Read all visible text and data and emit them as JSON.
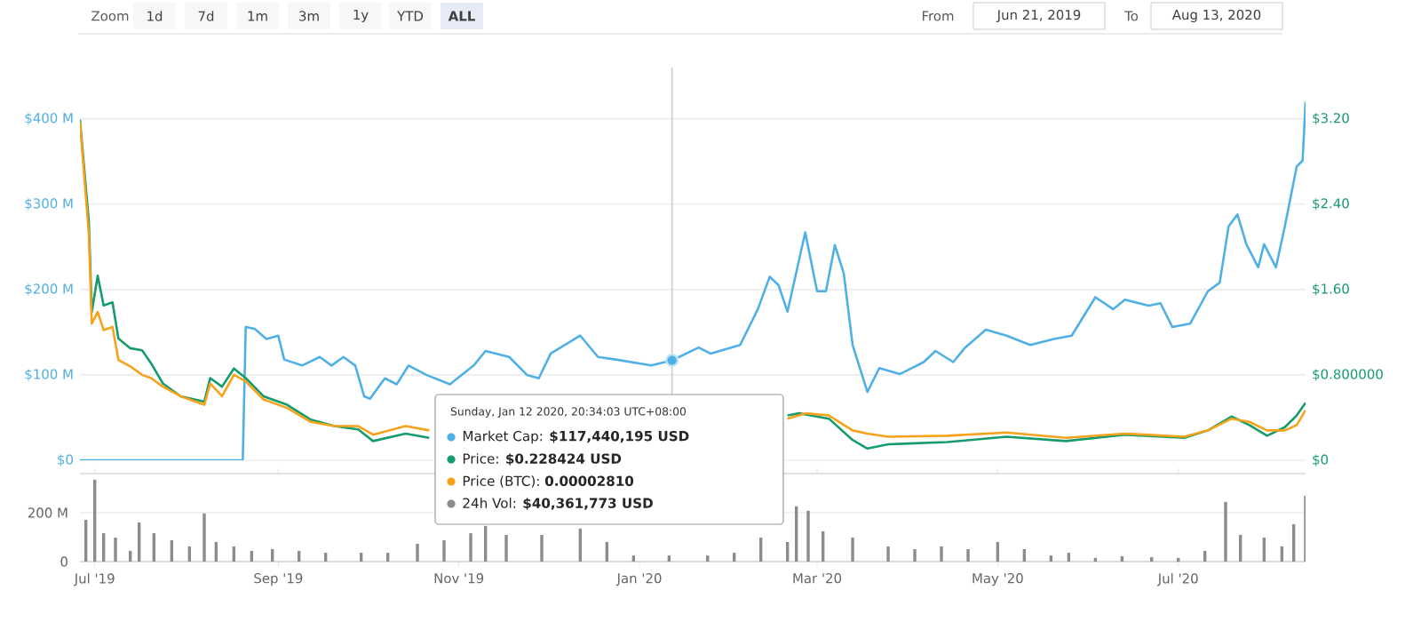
{
  "chart_data": [
    {
      "type": "line",
      "xlim": [
        "2019-06-26",
        "2020-08-13"
      ],
      "ylim": [
        0,
        460
      ],
      "yticks": [
        {
          "value": 0,
          "label": "$0"
        },
        {
          "value": 100,
          "label": "$100 M"
        },
        {
          "value": 200,
          "label": "$200 M"
        },
        {
          "value": 300,
          "label": "$300 M"
        },
        {
          "value": 400,
          "label": "$400 M"
        }
      ],
      "y2lim": [
        0,
        3.68
      ],
      "y2ticks": [
        {
          "value": 0,
          "label": "$0"
        },
        {
          "value": 0.8,
          "label": "$0.800000"
        },
        {
          "value": 1.6,
          "label": "$1.60"
        },
        {
          "value": 2.4,
          "label": "$2.40"
        },
        {
          "value": 3.2,
          "label": "$3.20"
        }
      ],
      "tick_labels": "y",
      "grid": "y",
      "legend": "bottom",
      "ref_lines": [
        {
          "axis": "x",
          "value": "2020-01-12",
          "color": "#cccccc"
        }
      ],
      "annotations": [
        "Zoom",
        "1d",
        "7d",
        "1m",
        "3m",
        "1y",
        "YTD",
        "ALL",
        "From",
        "Jun 21, 2019",
        "To",
        "Aug 13, 2020",
        "Sunday, Jan 12 2020, 20:34:03 UTC+08:00",
        ": **$117,440,195 USD**",
        ": **$0.228424 USD**",
        ": **0.00002810**",
        ": **$40,361,773 USD**"
      ],
      "series": [
        {
          "name": "Market Cap",
          "color": "#4fb0e6",
          "x": [
            "2019-06-26",
            "2019-08-20",
            "2019-08-21",
            "2019-08-24",
            "2019-08-28",
            "2019-09-01",
            "2019-09-03",
            "2019-09-09",
            "2019-09-15",
            "2019-09-19",
            "2019-09-23",
            "2019-09-27",
            "2019-09-30",
            "2019-10-02",
            "2019-10-07",
            "2019-10-11",
            "2019-10-15",
            "2019-10-21",
            "2019-10-29",
            "2019-11-06",
            "2019-11-10",
            "2019-11-18",
            "2019-11-24",
            "2019-11-28",
            "2019-12-02",
            "2019-12-12",
            "2019-12-18",
            "2019-12-24",
            "2020-01-05",
            "2020-01-12",
            "2020-01-21",
            "2020-01-25",
            "2020-02-04",
            "2020-02-10",
            "2020-02-14",
            "2020-02-17",
            "2020-02-20",
            "2020-02-26",
            "2020-03-01",
            "2020-03-04",
            "2020-03-07",
            "2020-03-10",
            "2020-03-13",
            "2020-03-18",
            "2020-03-22",
            "2020-03-29",
            "2020-04-06",
            "2020-04-10",
            "2020-04-16",
            "2020-04-20",
            "2020-04-27",
            "2020-05-04",
            "2020-05-12",
            "2020-05-20",
            "2020-05-26",
            "2020-06-03",
            "2020-06-09",
            "2020-06-13",
            "2020-06-21",
            "2020-06-25",
            "2020-06-29",
            "2020-07-05",
            "2020-07-11",
            "2020-07-15",
            "2020-07-18",
            "2020-07-21",
            "2020-07-24",
            "2020-07-28",
            "2020-07-30",
            "2020-08-03",
            "2020-08-06",
            "2020-08-10",
            "2020-08-12",
            "2020-08-13"
          ],
          "values": [
            0,
            0,
            156,
            154,
            142,
            146,
            118,
            111,
            121,
            111,
            121,
            111,
            75,
            72,
            96,
            89,
            111,
            100,
            89,
            111,
            128,
            121,
            100,
            96,
            125,
            146,
            121,
            118,
            111,
            117,
            132,
            125,
            135,
            177,
            215,
            205,
            174,
            267,
            198,
            198,
            252,
            219,
            135,
            80,
            108,
            101,
            115,
            128,
            115,
            132,
            153,
            146,
            135,
            142,
            146,
            191,
            177,
            188,
            181,
            184,
            156,
            160,
            198,
            208,
            274,
            288,
            253,
            226,
            253,
            226,
            274,
            344,
            351,
            420
          ]
        },
        {
          "name": "Price",
          "color": "#169b6b",
          "axis": "y2",
          "x": [
            "2019-06-26",
            "2019-06-29",
            "2019-06-30",
            "2019-07-02",
            "2019-07-04",
            "2019-07-07",
            "2019-07-09",
            "2019-07-13",
            "2019-07-17",
            "2019-07-20",
            "2019-07-24",
            "2019-07-30",
            "2019-08-07",
            "2019-08-09",
            "2019-08-13",
            "2019-08-17",
            "2019-08-21",
            "2019-08-27",
            "2019-09-04",
            "2019-09-12",
            "2019-09-20",
            "2019-09-28",
            "2019-10-03",
            "2019-10-14",
            "2019-10-22",
            "2019-12-01",
            "2020-02-20",
            "2020-02-24",
            "2020-03-05",
            "2020-03-13",
            "2020-03-18",
            "2020-03-25",
            "2020-04-14",
            "2020-05-04",
            "2020-05-24",
            "2020-06-13",
            "2020-07-03",
            "2020-07-11",
            "2020-07-19",
            "2020-07-25",
            "2020-07-31",
            "2020-08-06",
            "2020-08-10",
            "2020-08-13"
          ],
          "values": [
            3.19,
            2.24,
            1.39,
            1.73,
            1.45,
            1.48,
            1.14,
            1.05,
            1.03,
            0.91,
            0.72,
            0.6,
            0.55,
            0.77,
            0.69,
            0.86,
            0.77,
            0.6,
            0.52,
            0.38,
            0.32,
            0.29,
            0.18,
            0.25,
            0.21,
            null,
            0.42,
            0.44,
            0.39,
            0.19,
            0.11,
            0.15,
            0.17,
            0.22,
            0.18,
            0.24,
            0.21,
            0.28,
            0.41,
            0.33,
            0.23,
            0.31,
            0.42,
            0.54
          ]
        },
        {
          "name": "Price (BTC)",
          "color": "#f7a21b",
          "axis": "y2",
          "x": [
            "2019-06-26",
            "2019-06-29",
            "2019-06-30",
            "2019-07-02",
            "2019-07-04",
            "2019-07-07",
            "2019-07-09",
            "2019-07-13",
            "2019-07-17",
            "2019-07-20",
            "2019-07-24",
            "2019-07-30",
            "2019-08-07",
            "2019-08-09",
            "2019-08-13",
            "2019-08-17",
            "2019-08-21",
            "2019-08-27",
            "2019-09-04",
            "2019-09-12",
            "2019-09-20",
            "2019-09-28",
            "2019-10-03",
            "2019-10-14",
            "2019-10-22",
            "2019-12-01",
            "2020-02-20",
            "2020-02-26",
            "2020-03-05",
            "2020-03-13",
            "2020-03-18",
            "2020-03-25",
            "2020-04-14",
            "2020-05-04",
            "2020-05-24",
            "2020-06-13",
            "2020-07-03",
            "2020-07-11",
            "2020-07-19",
            "2020-07-25",
            "2020-07-31",
            "2020-08-06",
            "2020-08-10",
            "2020-08-13"
          ],
          "values": [
            3.17,
            2.12,
            1.28,
            1.39,
            1.22,
            1.25,
            0.94,
            0.88,
            0.8,
            0.77,
            0.69,
            0.6,
            0.52,
            0.72,
            0.6,
            0.8,
            0.74,
            0.57,
            0.49,
            0.36,
            0.32,
            0.32,
            0.24,
            0.32,
            0.28,
            null,
            0.39,
            0.44,
            0.42,
            0.28,
            0.25,
            0.22,
            0.23,
            0.26,
            0.21,
            0.25,
            0.22,
            0.28,
            0.39,
            0.36,
            0.28,
            0.28,
            0.33,
            0.47
          ]
        }
      ]
    },
    {
      "type": "bar",
      "xlim": [
        "2019-06-26",
        "2020-08-13"
      ],
      "xticks": [
        {
          "value": "2019-07-01",
          "label": "Jul '19"
        },
        {
          "value": "2019-09-01",
          "label": "Sep '19"
        },
        {
          "value": "2019-11-01",
          "label": "Nov '19"
        },
        {
          "value": "2020-01-01",
          "label": "Jan '20"
        },
        {
          "value": "2020-03-01",
          "label": "Mar '20"
        },
        {
          "value": "2020-05-01",
          "label": "May '20"
        },
        {
          "value": "2020-07-01",
          "label": "Jul '20"
        }
      ],
      "ylim": [
        0,
        360
      ],
      "yticks": [
        0,
        {
          "value": 200,
          "label": "200 M"
        }
      ],
      "grid": "y",
      "series": [
        {
          "name": "24h Vol",
          "color": "#8c8c8c",
          "x": [
            "2019-06-28",
            "2019-07-01",
            "2019-07-04",
            "2019-07-08",
            "2019-07-13",
            "2019-07-16",
            "2019-07-21",
            "2019-07-27",
            "2019-08-02",
            "2019-08-07",
            "2019-08-11",
            "2019-08-17",
            "2019-08-23",
            "2019-08-30",
            "2019-09-08",
            "2019-09-17",
            "2019-09-29",
            "2019-10-08",
            "2019-10-18",
            "2019-10-27",
            "2019-11-05",
            "2019-11-10",
            "2019-11-17",
            "2019-11-29",
            "2019-12-12",
            "2019-12-21",
            "2019-12-30",
            "2020-01-11",
            "2020-01-24",
            "2020-02-02",
            "2020-02-11",
            "2020-02-20",
            "2020-02-23",
            "2020-02-27",
            "2020-03-03",
            "2020-03-13",
            "2020-03-25",
            "2020-04-03",
            "2020-04-12",
            "2020-04-21",
            "2020-05-01",
            "2020-05-10",
            "2020-05-19",
            "2020-05-25",
            "2020-06-03",
            "2020-06-12",
            "2020-06-22",
            "2020-07-01",
            "2020-07-10",
            "2020-07-17",
            "2020-07-22",
            "2020-07-30",
            "2020-08-05",
            "2020-08-09",
            "2020-08-13"
          ],
          "values": [
            171,
            335,
            116,
            98,
            44,
            160,
            116,
            87,
            62,
            197,
            80,
            62,
            44,
            51,
            44,
            36,
            36,
            36,
            73,
            87,
            116,
            146,
            109,
            109,
            135,
            80,
            25,
            25,
            25,
            36,
            98,
            80,
            226,
            208,
            124,
            98,
            62,
            51,
            62,
            51,
            80,
            51,
            25,
            36,
            15,
            22,
            18,
            15,
            44,
            244,
            109,
            98,
            62,
            153,
            269
          ]
        }
      ]
    }
  ]
}
